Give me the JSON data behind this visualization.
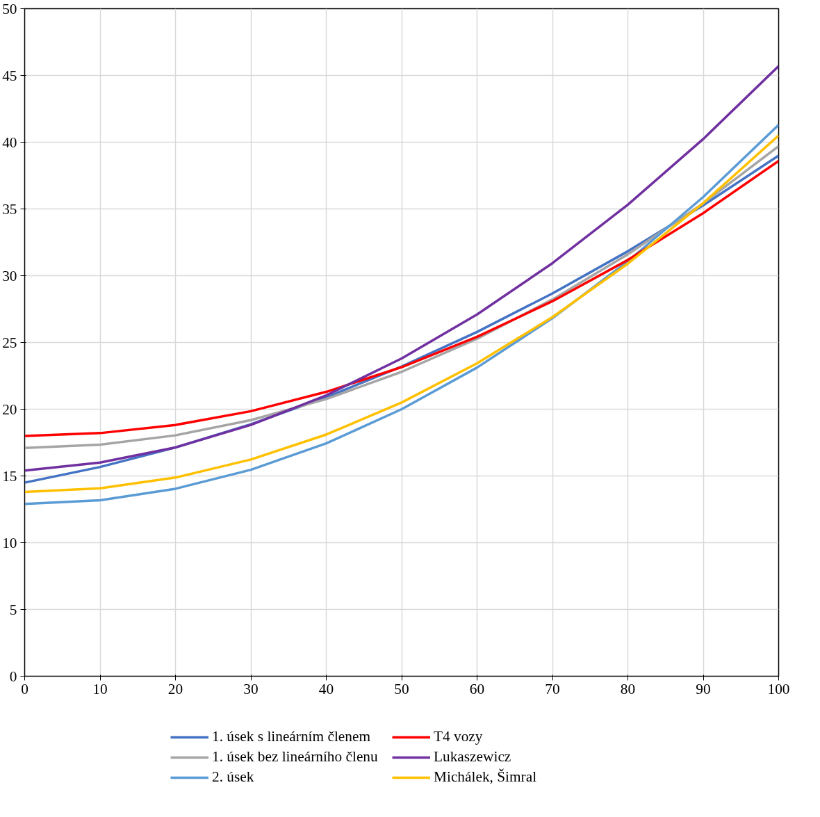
{
  "chart_data": {
    "type": "line",
    "x": [
      0,
      10,
      20,
      30,
      40,
      50,
      60,
      70,
      80,
      90,
      100
    ],
    "series": [
      {
        "name": "1. úsek s lineárním členem",
        "color": "#4472c4",
        "values": [
          14.5,
          15.67,
          17.13,
          18.87,
          20.89,
          23.2,
          25.79,
          28.67,
          31.83,
          35.27,
          39.0
        ]
      },
      {
        "name": "1. úsek bez lineárního členu",
        "color": "#a5a5a5",
        "values": [
          17.1,
          17.34,
          18.04,
          19.18,
          20.76,
          22.8,
          25.28,
          28.22,
          31.6,
          35.42,
          39.7
        ]
      },
      {
        "name": "2. úsek",
        "color": "#5b9bd5",
        "values": [
          12.9,
          13.18,
          14.04,
          15.46,
          17.44,
          20.0,
          23.12,
          26.82,
          31.08,
          35.9,
          41.3
        ]
      },
      {
        "name": "T4 vozy",
        "color": "#ff0000",
        "values": [
          18.0,
          18.21,
          18.82,
          19.85,
          21.3,
          23.15,
          25.42,
          28.09,
          31.18,
          34.69,
          38.6
        ]
      },
      {
        "name": "Lukaszewicz",
        "color": "#7030a0",
        "values": [
          15.4,
          16.0,
          17.14,
          18.82,
          21.04,
          23.8,
          27.1,
          30.94,
          35.32,
          40.24,
          45.7
        ]
      },
      {
        "name": "Michálek, Šimral",
        "color": "#ffc000",
        "values": [
          13.8,
          14.08,
          14.88,
          16.23,
          18.1,
          20.5,
          23.44,
          26.9,
          30.9,
          35.44,
          40.5
        ]
      }
    ],
    "xlim": [
      0,
      100
    ],
    "xticks": [
      0,
      10,
      20,
      30,
      40,
      50,
      60,
      70,
      80,
      90,
      100
    ],
    "ylim": [
      0,
      50
    ],
    "yticks": [
      0,
      5,
      10,
      15,
      20,
      25,
      30,
      35,
      40,
      45,
      50
    ],
    "grid": true,
    "legend": "bottom",
    "marker": "none",
    "line_style": "solid"
  }
}
